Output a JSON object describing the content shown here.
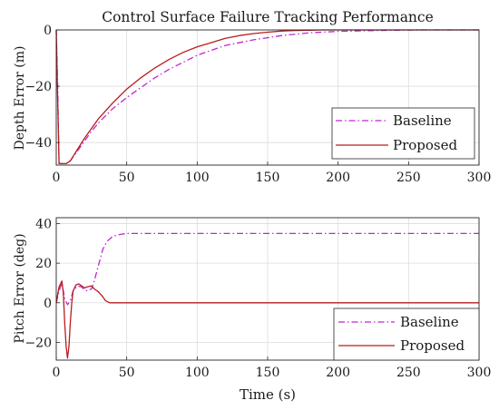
{
  "chart_data": [
    {
      "type": "line",
      "title": "Control Surface Failure Tracking Performance",
      "xlabel": "",
      "ylabel": "Depth Error (m)",
      "xlim": [
        0,
        300
      ],
      "ylim": [
        -48,
        0
      ],
      "xticks": [
        0,
        50,
        100,
        150,
        200,
        250,
        300
      ],
      "yticks": [
        -40,
        -20,
        0
      ],
      "grid": true,
      "legend": "bottom-right",
      "series": [
        {
          "name": "Baseline",
          "color": "#c026d3",
          "dash": "dashdot",
          "x": [
            0,
            1,
            2,
            3,
            5,
            7,
            10,
            15,
            20,
            25,
            30,
            40,
            50,
            60,
            70,
            80,
            90,
            100,
            120,
            140,
            160,
            180,
            200,
            220,
            240,
            260,
            280,
            300
          ],
          "y": [
            0,
            -20,
            -47.5,
            -47.5,
            -47.5,
            -47.5,
            -46.5,
            -43,
            -39.5,
            -36,
            -33,
            -28,
            -24,
            -20.5,
            -17,
            -14,
            -11.5,
            -9,
            -5.5,
            -3.5,
            -2,
            -1,
            -0.5,
            -0.3,
            -0.1,
            0,
            0,
            0
          ]
        },
        {
          "name": "Proposed",
          "color": "#b91c1c",
          "dash": "solid",
          "x": [
            0,
            1,
            2,
            3,
            5,
            7,
            10,
            15,
            20,
            25,
            30,
            40,
            50,
            60,
            70,
            80,
            90,
            100,
            110,
            120,
            130,
            140,
            150,
            160,
            170,
            180,
            190,
            200,
            250,
            300
          ],
          "y": [
            0,
            -25,
            -47.5,
            -47.5,
            -47.5,
            -47.5,
            -46.5,
            -42.5,
            -38.5,
            -35,
            -31.5,
            -26,
            -21,
            -17,
            -13.5,
            -10.5,
            -8,
            -6,
            -4.5,
            -3,
            -2,
            -1.3,
            -0.8,
            -0.4,
            -0.2,
            -0.1,
            0,
            0,
            0,
            0
          ]
        }
      ]
    },
    {
      "type": "line",
      "title": "",
      "xlabel": "Time (s)",
      "ylabel": "Pitch Error (deg)",
      "xlim": [
        0,
        300
      ],
      "ylim": [
        -29,
        43
      ],
      "xticks": [
        0,
        50,
        100,
        150,
        200,
        250,
        300
      ],
      "yticks": [
        -20,
        0,
        20,
        40
      ],
      "grid": true,
      "legend": "bottom-right",
      "series": [
        {
          "name": "Baseline",
          "color": "#c026d3",
          "dash": "dashdot",
          "x": [
            0,
            2,
            4,
            5,
            6,
            8,
            10,
            12,
            15,
            18,
            20,
            22,
            25,
            27,
            30,
            33,
            36,
            40,
            45,
            50,
            60,
            80,
            300
          ],
          "y": [
            0,
            6,
            10,
            6,
            2,
            -1,
            1,
            6,
            8.5,
            8,
            6.5,
            6,
            7,
            11,
            19,
            27,
            31,
            33.5,
            34.5,
            35,
            35,
            35,
            35
          ]
        },
        {
          "name": "Proposed",
          "color": "#b91c1c",
          "dash": "solid",
          "x": [
            0,
            2,
            4,
            5,
            6,
            7,
            8,
            9,
            10,
            11,
            12,
            14,
            16,
            18,
            20,
            22,
            25,
            27,
            30,
            33,
            35,
            38,
            42,
            50,
            300
          ],
          "y": [
            0,
            8,
            11,
            5,
            -10,
            -22,
            -28,
            -22,
            -10,
            0,
            6,
            9,
            9.5,
            8.5,
            7.5,
            8,
            8.5,
            7,
            5.5,
            3,
            1,
            0,
            0,
            0,
            0
          ]
        }
      ]
    }
  ]
}
